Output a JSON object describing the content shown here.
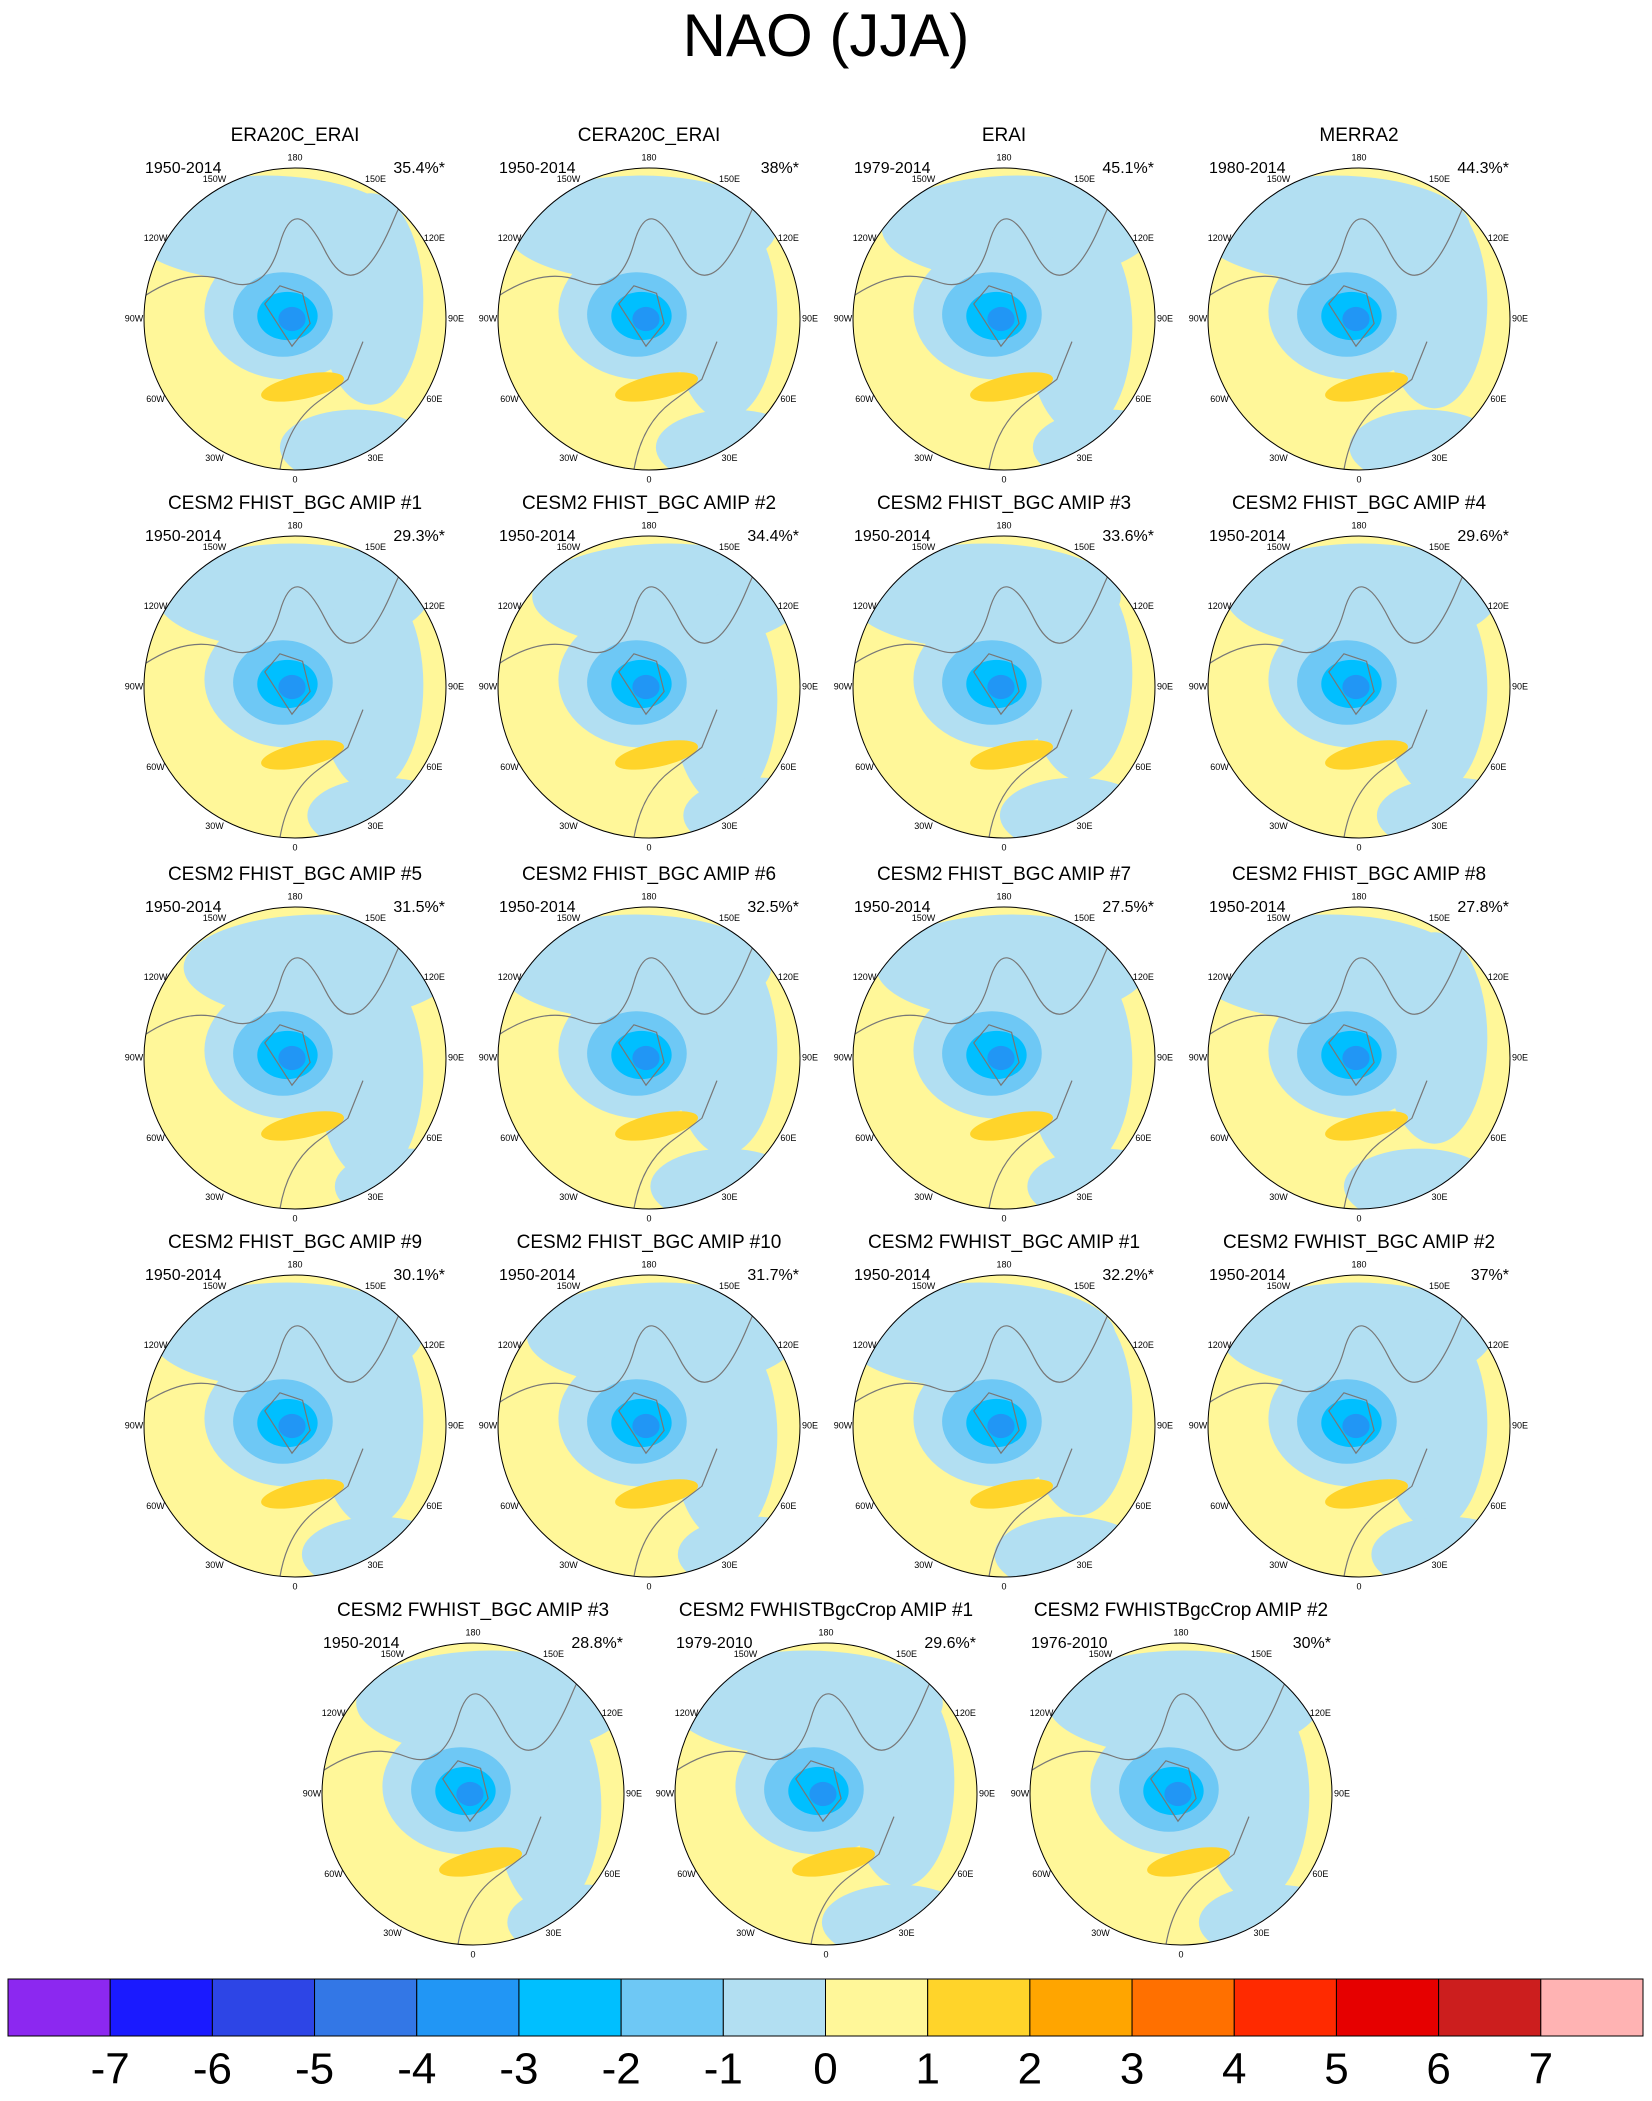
{
  "title": "NAO (JJA)",
  "panels": [
    {
      "title": "ERA20C_ERAI",
      "period": "1950-2014",
      "percent": "35.4%*"
    },
    {
      "title": "CERA20C_ERAI",
      "period": "1950-2014",
      "percent": "38%*"
    },
    {
      "title": "ERAI",
      "period": "1979-2014",
      "percent": "45.1%*"
    },
    {
      "title": "MERRA2",
      "period": "1980-2014",
      "percent": "44.3%*"
    },
    {
      "title": "CESM2 FHIST_BGC AMIP #1",
      "period": "1950-2014",
      "percent": "29.3%*"
    },
    {
      "title": "CESM2 FHIST_BGC AMIP #2",
      "period": "1950-2014",
      "percent": "34.4%*"
    },
    {
      "title": "CESM2 FHIST_BGC AMIP #3",
      "period": "1950-2014",
      "percent": "33.6%*"
    },
    {
      "title": "CESM2 FHIST_BGC AMIP #4",
      "period": "1950-2014",
      "percent": "29.6%*"
    },
    {
      "title": "CESM2 FHIST_BGC AMIP #5",
      "period": "1950-2014",
      "percent": "31.5%*"
    },
    {
      "title": "CESM2 FHIST_BGC AMIP #6",
      "period": "1950-2014",
      "percent": "32.5%*"
    },
    {
      "title": "CESM2 FHIST_BGC AMIP #7",
      "period": "1950-2014",
      "percent": "27.5%*"
    },
    {
      "title": "CESM2 FHIST_BGC AMIP #8",
      "period": "1950-2014",
      "percent": "27.8%*"
    },
    {
      "title": "CESM2 FHIST_BGC AMIP #9",
      "period": "1950-2014",
      "percent": "30.1%*"
    },
    {
      "title": "CESM2 FHIST_BGC AMIP #10",
      "period": "1950-2014",
      "percent": "31.7%*"
    },
    {
      "title": "CESM2 FWHIST_BGC AMIP #1",
      "period": "1950-2014",
      "percent": "32.2%*"
    },
    {
      "title": "CESM2 FWHIST_BGC AMIP #2",
      "period": "1950-2014",
      "percent": "37%*"
    },
    {
      "title": "CESM2 FWHIST_BGC AMIP #3",
      "period": "1950-2014",
      "percent": "28.8%*"
    },
    {
      "title": "CESM2 FWHISTBgcCrop AMIP #1",
      "period": "1979-2010",
      "percent": "29.6%*"
    },
    {
      "title": "CESM2 FWHISTBgcCrop AMIP #2",
      "period": "1976-2010",
      "percent": "30%*"
    }
  ],
  "longitude_labels": [
    "0",
    "30E",
    "60E",
    "90E",
    "120E",
    "150E",
    "180",
    "150W",
    "120W",
    "90W",
    "60W",
    "30W"
  ],
  "colorbar": {
    "colors": [
      "#8c28f0",
      "#1a1aff",
      "#2d45e6",
      "#3377e6",
      "#2196f5",
      "#00bfff",
      "#6ec8f5",
      "#b2dff2",
      "#fff799",
      "#ffd42a",
      "#ffa500",
      "#ff7000",
      "#ff2a00",
      "#e60000",
      "#cc1e1e",
      "#ffb3b3"
    ],
    "labels": [
      -7,
      -6,
      -5,
      -4,
      -3,
      -2,
      -1,
      0,
      1,
      2,
      3,
      4,
      5,
      6,
      7
    ]
  }
}
